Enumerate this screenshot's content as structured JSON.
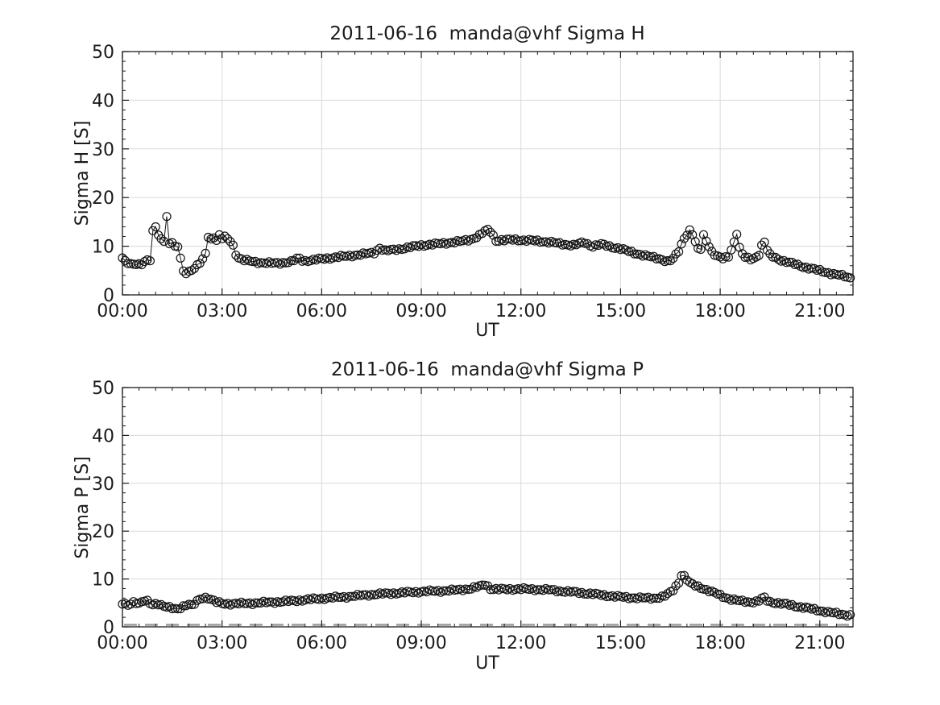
{
  "page": {
    "background": "#ffffff",
    "axis_color": "#1c1c1c",
    "grid_color": "#d9d9d9",
    "text_color": "#1a1a1a",
    "marker_color": "#141414",
    "flag_dash_color": "#9b9b9b"
  },
  "chart_data": [
    {
      "type": "line-scatter",
      "title": "2011-06-16  manda@vhf Sigma H",
      "xlabel": "UT",
      "ylabel": "Sigma H [S]",
      "xlim_hours": [
        0,
        22
      ],
      "ylim": [
        0,
        50
      ],
      "grid": true,
      "marker": "open-circle",
      "sample_interval_minutes": 5,
      "x_minor_step_hours": 0.5,
      "y_minor_step": 2,
      "zero_flag_dashes": false,
      "xticks": [
        {
          "hour": 0,
          "label": "00:00"
        },
        {
          "hour": 3,
          "label": "03:00"
        },
        {
          "hour": 6,
          "label": "06:00"
        },
        {
          "hour": 9,
          "label": "09:00"
        },
        {
          "hour": 12,
          "label": "12:00"
        },
        {
          "hour": 15,
          "label": "15:00"
        },
        {
          "hour": 18,
          "label": "18:00"
        },
        {
          "hour": 21,
          "label": "21:00"
        }
      ],
      "yticks": [
        {
          "value": 0,
          "label": "0"
        },
        {
          "value": 10,
          "label": "10"
        },
        {
          "value": 20,
          "label": "20"
        },
        {
          "value": 30,
          "label": "30"
        },
        {
          "value": 40,
          "label": "40"
        },
        {
          "value": 50,
          "label": "50"
        }
      ],
      "series": [
        {
          "name": "Sigma H",
          "keypoints": [
            [
              0.0,
              7.6
            ],
            [
              0.1,
              6.7
            ],
            [
              0.25,
              6.2
            ],
            [
              0.4,
              6.4
            ],
            [
              0.55,
              6.3
            ],
            [
              0.7,
              7.0
            ],
            [
              0.8,
              7.2
            ],
            [
              0.85,
              7.0
            ],
            [
              0.92,
              13.2
            ],
            [
              1.0,
              14.0
            ],
            [
              1.05,
              11.0
            ],
            [
              1.12,
              13.8
            ],
            [
              1.18,
              10.8
            ],
            [
              1.25,
              11.3
            ],
            [
              1.3,
              12.0
            ],
            [
              1.33,
              16.3
            ],
            [
              1.42,
              10.3
            ],
            [
              1.5,
              10.8
            ],
            [
              1.58,
              9.7
            ],
            [
              1.65,
              10.2
            ],
            [
              1.72,
              9.0
            ],
            [
              1.8,
              5.0
            ],
            [
              1.9,
              4.6
            ],
            [
              2.0,
              4.8
            ],
            [
              2.1,
              5.2
            ],
            [
              2.2,
              5.6
            ],
            [
              2.3,
              6.3
            ],
            [
              2.4,
              7.0
            ],
            [
              2.5,
              8.5
            ],
            [
              2.58,
              12.1
            ],
            [
              2.67,
              11.4
            ],
            [
              2.75,
              11.9
            ],
            [
              2.83,
              11.2
            ],
            [
              2.92,
              12.2
            ],
            [
              3.0,
              11.6
            ],
            [
              3.1,
              11.9
            ],
            [
              3.2,
              11.3
            ],
            [
              3.3,
              10.9
            ],
            [
              3.4,
              8.6
            ],
            [
              3.5,
              7.6
            ],
            [
              3.65,
              7.1
            ],
            [
              3.9,
              6.9
            ],
            [
              4.2,
              6.6
            ],
            [
              4.5,
              6.5
            ],
            [
              4.8,
              6.6
            ],
            [
              5.1,
              6.8
            ],
            [
              5.3,
              7.6
            ],
            [
              5.45,
              7.0
            ],
            [
              5.7,
              7.1
            ],
            [
              6.0,
              7.4
            ],
            [
              6.4,
              7.7
            ],
            [
              6.8,
              8.0
            ],
            [
              7.2,
              8.3
            ],
            [
              7.6,
              8.7
            ],
            [
              7.75,
              9.7
            ],
            [
              7.9,
              9.0
            ],
            [
              8.2,
              9.3
            ],
            [
              8.6,
              9.7
            ],
            [
              9.0,
              10.2
            ],
            [
              9.4,
              10.4
            ],
            [
              9.8,
              10.7
            ],
            [
              10.2,
              11.0
            ],
            [
              10.5,
              11.4
            ],
            [
              10.75,
              12.2
            ],
            [
              10.9,
              13.0
            ],
            [
              11.0,
              13.3
            ],
            [
              11.1,
              13.0
            ],
            [
              11.25,
              11.2
            ],
            [
              11.5,
              11.2
            ],
            [
              11.8,
              11.4
            ],
            [
              12.1,
              11.2
            ],
            [
              12.5,
              11.1
            ],
            [
              12.9,
              10.8
            ],
            [
              13.3,
              10.4
            ],
            [
              13.6,
              10.2
            ],
            [
              13.9,
              10.8
            ],
            [
              14.15,
              10.0
            ],
            [
              14.4,
              10.4
            ],
            [
              14.7,
              9.9
            ],
            [
              15.0,
              9.5
            ],
            [
              15.3,
              8.8
            ],
            [
              15.6,
              8.3
            ],
            [
              15.9,
              7.8
            ],
            [
              16.2,
              7.4
            ],
            [
              16.45,
              6.8
            ],
            [
              16.6,
              7.5
            ],
            [
              16.75,
              9.0
            ],
            [
              16.9,
              11.5
            ],
            [
              17.0,
              12.5
            ],
            [
              17.1,
              13.4
            ],
            [
              17.2,
              12.0
            ],
            [
              17.3,
              9.6
            ],
            [
              17.4,
              8.9
            ],
            [
              17.5,
              12.2
            ],
            [
              17.6,
              11.0
            ],
            [
              17.75,
              8.9
            ],
            [
              17.9,
              7.9
            ],
            [
              18.1,
              7.4
            ],
            [
              18.25,
              7.9
            ],
            [
              18.4,
              10.5
            ],
            [
              18.5,
              12.7
            ],
            [
              18.6,
              9.0
            ],
            [
              18.75,
              7.7
            ],
            [
              18.9,
              7.3
            ],
            [
              19.05,
              7.6
            ],
            [
              19.2,
              8.6
            ],
            [
              19.3,
              11.6
            ],
            [
              19.45,
              8.4
            ],
            [
              19.6,
              7.8
            ],
            [
              19.9,
              7.0
            ],
            [
              20.2,
              6.4
            ],
            [
              20.5,
              5.8
            ],
            [
              20.8,
              5.3
            ],
            [
              21.1,
              4.8
            ],
            [
              21.4,
              4.3
            ],
            [
              21.7,
              3.9
            ],
            [
              21.92,
              3.5
            ]
          ]
        }
      ]
    },
    {
      "type": "line-scatter",
      "title": "2011-06-16  manda@vhf Sigma P",
      "xlabel": "UT",
      "ylabel": "Sigma P [S]",
      "xlim_hours": [
        0,
        22
      ],
      "ylim": [
        0,
        50
      ],
      "grid": true,
      "marker": "open-circle",
      "sample_interval_minutes": 5,
      "x_minor_step_hours": 0.5,
      "y_minor_step": 2,
      "zero_flag_dashes": true,
      "xticks": [
        {
          "hour": 0,
          "label": "00:00"
        },
        {
          "hour": 3,
          "label": "03:00"
        },
        {
          "hour": 6,
          "label": "06:00"
        },
        {
          "hour": 9,
          "label": "09:00"
        },
        {
          "hour": 12,
          "label": "12:00"
        },
        {
          "hour": 15,
          "label": "15:00"
        },
        {
          "hour": 18,
          "label": "18:00"
        },
        {
          "hour": 21,
          "label": "21:00"
        }
      ],
      "yticks": [
        {
          "value": 0,
          "label": "0"
        },
        {
          "value": 10,
          "label": "10"
        },
        {
          "value": 20,
          "label": "20"
        },
        {
          "value": 30,
          "label": "30"
        },
        {
          "value": 40,
          "label": "40"
        },
        {
          "value": 50,
          "label": "50"
        }
      ],
      "series": [
        {
          "name": "Sigma P",
          "keypoints": [
            [
              0.0,
              4.8
            ],
            [
              0.15,
              4.5
            ],
            [
              0.35,
              5.3
            ],
            [
              0.5,
              4.9
            ],
            [
              0.7,
              5.5
            ],
            [
              0.9,
              4.6
            ],
            [
              1.05,
              5.0
            ],
            [
              1.25,
              4.3
            ],
            [
              1.45,
              3.9
            ],
            [
              1.65,
              3.7
            ],
            [
              1.85,
              4.4
            ],
            [
              2.0,
              4.7
            ],
            [
              2.1,
              4.3
            ],
            [
              2.3,
              5.7
            ],
            [
              2.45,
              6.2
            ],
            [
              2.6,
              6.0
            ],
            [
              2.8,
              5.2
            ],
            [
              3.0,
              4.9
            ],
            [
              3.3,
              4.8
            ],
            [
              3.7,
              4.9
            ],
            [
              4.1,
              5.0
            ],
            [
              4.6,
              5.2
            ],
            [
              5.1,
              5.4
            ],
            [
              5.6,
              5.7
            ],
            [
              6.1,
              6.0
            ],
            [
              6.6,
              6.2
            ],
            [
              7.1,
              6.5
            ],
            [
              7.6,
              6.8
            ],
            [
              8.1,
              7.0
            ],
            [
              8.6,
              7.2
            ],
            [
              9.1,
              7.4
            ],
            [
              9.6,
              7.5
            ],
            [
              10.1,
              7.7
            ],
            [
              10.5,
              8.0
            ],
            [
              10.8,
              8.5
            ],
            [
              10.95,
              9.0
            ],
            [
              11.05,
              8.0
            ],
            [
              11.3,
              7.8
            ],
            [
              11.7,
              7.9
            ],
            [
              12.1,
              7.9
            ],
            [
              12.5,
              7.8
            ],
            [
              12.9,
              7.7
            ],
            [
              13.3,
              7.4
            ],
            [
              13.7,
              7.2
            ],
            [
              14.1,
              6.9
            ],
            [
              14.5,
              6.6
            ],
            [
              14.9,
              6.3
            ],
            [
              15.3,
              6.1
            ],
            [
              15.7,
              6.0
            ],
            [
              16.0,
              6.0
            ],
            [
              16.3,
              6.3
            ],
            [
              16.55,
              7.4
            ],
            [
              16.75,
              9.3
            ],
            [
              16.85,
              11.2
            ],
            [
              16.95,
              10.3
            ],
            [
              17.1,
              9.0
            ],
            [
              17.3,
              8.5
            ],
            [
              17.5,
              8.0
            ],
            [
              17.7,
              7.4
            ],
            [
              17.9,
              6.9
            ],
            [
              18.1,
              6.3
            ],
            [
              18.35,
              5.7
            ],
            [
              18.6,
              5.4
            ],
            [
              18.9,
              5.2
            ],
            [
              19.15,
              5.3
            ],
            [
              19.3,
              6.2
            ],
            [
              19.45,
              5.3
            ],
            [
              19.7,
              5.0
            ],
            [
              20.0,
              4.7
            ],
            [
              20.3,
              4.3
            ],
            [
              20.7,
              3.8
            ],
            [
              21.0,
              3.4
            ],
            [
              21.3,
              3.0
            ],
            [
              21.6,
              2.7
            ],
            [
              21.92,
              2.4
            ]
          ]
        }
      ]
    }
  ]
}
